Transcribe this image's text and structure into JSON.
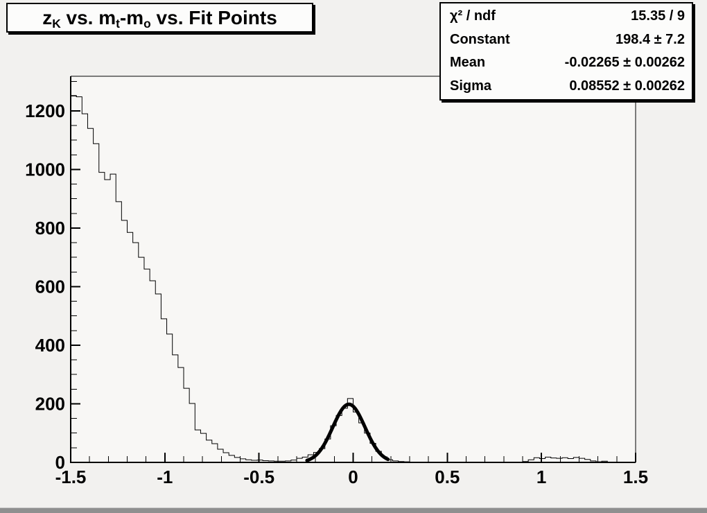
{
  "canvas": {
    "bg_color": "#f2f1ef",
    "frame_bg_color": "#f8f7f5",
    "line_color": "#000000",
    "box_bg_color": "#fcfcfb",
    "box_border_color": "#000000",
    "box_shadow_color": "#000000",
    "bottom_strip_color": "#8f8f8f"
  },
  "title_box": {
    "parts": [
      {
        "text": "z"
      },
      {
        "text": "K",
        "sub": true
      },
      {
        "text": " vs. m"
      },
      {
        "text": "t",
        "sub": true
      },
      {
        "text": "-m"
      },
      {
        "text": "o",
        "sub": true
      },
      {
        "text": " vs. Fit Points"
      }
    ]
  },
  "stats_box": {
    "rows": [
      {
        "label": "χ² / ndf",
        "value": "15.35 / 9"
      },
      {
        "label": "Constant",
        "value": "198.4 ± 7.2"
      },
      {
        "label": "Mean",
        "value": "-0.02265 ± 0.00262"
      },
      {
        "label": "Sigma",
        "value": "0.08552 ± 0.00262"
      }
    ]
  },
  "chart_data": {
    "type": "bar",
    "subtype": "step-histogram",
    "title": "z_K vs. m_t-m_o vs. Fit Points",
    "xlabel": "",
    "ylabel": "",
    "xlim": [
      -1.5,
      1.5
    ],
    "ylim": [
      0,
      1318
    ],
    "grid": false,
    "legend_position": "none",
    "x_ticks": [
      -1.5,
      -1,
      -0.5,
      0,
      0.5,
      1,
      1.5
    ],
    "x_tick_labels": [
      "-1.5",
      "-1",
      "-0.5",
      "0",
      "0.5",
      "1",
      "1.5"
    ],
    "x_minor_step": 0.1,
    "y_ticks": [
      0,
      200,
      400,
      600,
      800,
      1000,
      1200
    ],
    "y_tick_labels": [
      "0",
      "200",
      "400",
      "600",
      "800",
      "1000",
      "1200"
    ],
    "y_minor_step": 50,
    "bin_start": -1.5,
    "bin_width": 0.03,
    "bins": [
      1252,
      1248,
      1190,
      1140,
      1088,
      990,
      965,
      984,
      890,
      826,
      785,
      750,
      700,
      660,
      620,
      575,
      490,
      438,
      367,
      324,
      253,
      201,
      111,
      99,
      76,
      64,
      45,
      33,
      24,
      17,
      12,
      9,
      7,
      8,
      6,
      5,
      4,
      4,
      5,
      8,
      14,
      18,
      26,
      34,
      47,
      80,
      125,
      160,
      185,
      218,
      172,
      135,
      100,
      65,
      38,
      19,
      9,
      5,
      3,
      2,
      1,
      0,
      0,
      0,
      0,
      0,
      0,
      0,
      0,
      0,
      0,
      0,
      0,
      0,
      0,
      0,
      0,
      0,
      0,
      0,
      3,
      9,
      16,
      13,
      18,
      15,
      14,
      16,
      13,
      17,
      14,
      10,
      5,
      2,
      4,
      0,
      0,
      0,
      0,
      0
    ],
    "fit": {
      "type": "gaussian",
      "constant": 198.4,
      "mean": -0.02265,
      "sigma": 0.08552,
      "range": [
        -0.245,
        0.185
      ]
    }
  }
}
